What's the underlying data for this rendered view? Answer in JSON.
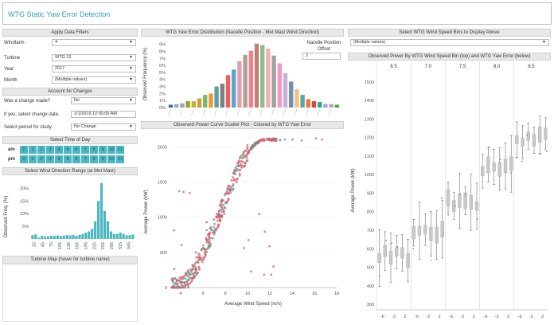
{
  "app": {
    "title": "WTG Static Yaw Error Detection"
  },
  "filters": {
    "header": "Apply Data Filters",
    "windfarm_label": "Windfarm",
    "windfarm_value": "4",
    "turbine_label": "Turbine",
    "turbine_value": "WTG 12",
    "year_label": "Year",
    "year_value": "2017",
    "month_label": "Month",
    "month_value": "(Multiple values)"
  },
  "changes": {
    "header": "Account for Changes",
    "made_label": "Was a change made?",
    "made_value": "No",
    "date_label": "If yes, select change date.",
    "date_value": "1/1/2019 12:00:00 AM",
    "period_label": "Select period for study.",
    "period_value": "No Change"
  },
  "time_of_day": {
    "header": "Select Time of Day",
    "am_label": "am",
    "pm_label": "pm",
    "hours": [
      "0",
      "1",
      "2",
      "3",
      "4",
      "5",
      "6",
      "7",
      "8",
      "9",
      "10",
      "11"
    ]
  },
  "wind_direction": {
    "header": "Select Wind Direction Range (at Met Mast)",
    "ylabel": "Observed Freq. (%)",
    "yticks": [
      "20%",
      "15%",
      "10%",
      "5%"
    ],
    "xticks": [
      "15",
      "45",
      "75",
      "105",
      "135",
      "165",
      "195",
      "225",
      "255",
      "285",
      "315",
      "345"
    ]
  },
  "turbine_map": {
    "header": "Turbine Map (hover for turbine name)"
  },
  "yaw_distribution": {
    "header": "WTG Yaw Error Distribution (Nacelle Position - Met Mast Wind Direction)",
    "ylabel": "Observed Frequency (%)",
    "yticks": [
      "9%",
      "8%",
      "7%",
      "6%",
      "5%",
      "4%",
      "3%",
      "2%",
      "1%",
      "0%"
    ],
    "offset_label": "Nacelle Position Offset",
    "offset_value": "2"
  },
  "scatter": {
    "header": "Observed Power Curve Scatter Plot - Colored by WTG Yaw Error",
    "xlabel": "Average Wind Speed (m/s)",
    "ylabel": "Average Power (kW)",
    "xticks": [
      "4",
      "6",
      "8",
      "10",
      "12",
      "14",
      "16",
      "18"
    ],
    "yticks": [
      "2000",
      "1500",
      "1000",
      "500",
      "0"
    ]
  },
  "bins": {
    "header": "Select WTG Wind Speed Bins to Display Above",
    "select_value": "(Multiple values)",
    "box_header": "Observed Power By WTG Wind Speed Bin (top) and WTG Yaw Error (below)",
    "columns": [
      "6.5",
      "7.0",
      "7.5",
      "8.0",
      "8.5"
    ],
    "ylabel": "Average Power (kW)",
    "yticks": [
      "1500",
      "1400",
      "1300",
      "1200",
      "1100",
      "1000",
      "900",
      "800",
      "700",
      "600",
      "500",
      "400",
      "300"
    ],
    "xticks": [
      "-6",
      "-2",
      "2",
      "-6",
      "-2",
      "2",
      "-6",
      "-2",
      "2",
      "-6",
      "-2",
      "2",
      "-6",
      "-2",
      "2"
    ]
  },
  "colors": {
    "teal": "#4ab7c2",
    "title": "#2f9fb0",
    "scatter_red": "#e05563",
    "scatter_teal": "#4fa9a0"
  }
}
